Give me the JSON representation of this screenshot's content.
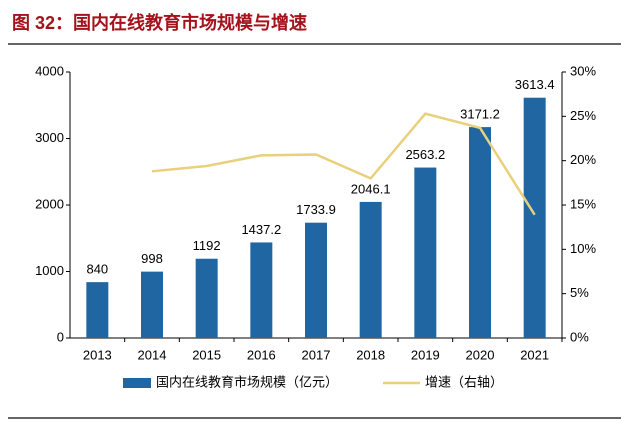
{
  "chart_data": {
    "type": "bar-line",
    "title": "图 32：国内在线教育市场规模与增速",
    "categories": [
      "2013",
      "2014",
      "2015",
      "2016",
      "2017",
      "2018",
      "2019",
      "2020",
      "2021"
    ],
    "series": [
      {
        "name": "国内在线教育市场规模（亿元）",
        "type": "bar",
        "color": "#1f66a3",
        "values": [
          840,
          998,
          1192,
          1437.2,
          1733.9,
          2046.1,
          2563.2,
          3171.2,
          3613.4
        ]
      },
      {
        "name": "增速（右轴）",
        "type": "line",
        "axis": "y2",
        "color": "#e8d07c",
        "values": [
          null,
          18.8,
          19.4,
          20.6,
          20.7,
          18.0,
          25.3,
          23.7,
          13.9
        ]
      }
    ],
    "ylim": [
      0,
      4000
    ],
    "yticks": [
      0,
      1000,
      2000,
      3000,
      4000
    ],
    "y2lim": [
      0,
      30
    ],
    "y2ticks": [
      {
        "value": 0,
        "label": "0%"
      },
      {
        "value": 5,
        "label": "5%"
      },
      {
        "value": 10,
        "label": "10%"
      },
      {
        "value": 15,
        "label": "15%"
      },
      {
        "value": 20,
        "label": "20%"
      },
      {
        "value": 25,
        "label": "25%"
      },
      {
        "value": 30,
        "label": "30%"
      }
    ],
    "grid": false,
    "legend": "bottom"
  }
}
